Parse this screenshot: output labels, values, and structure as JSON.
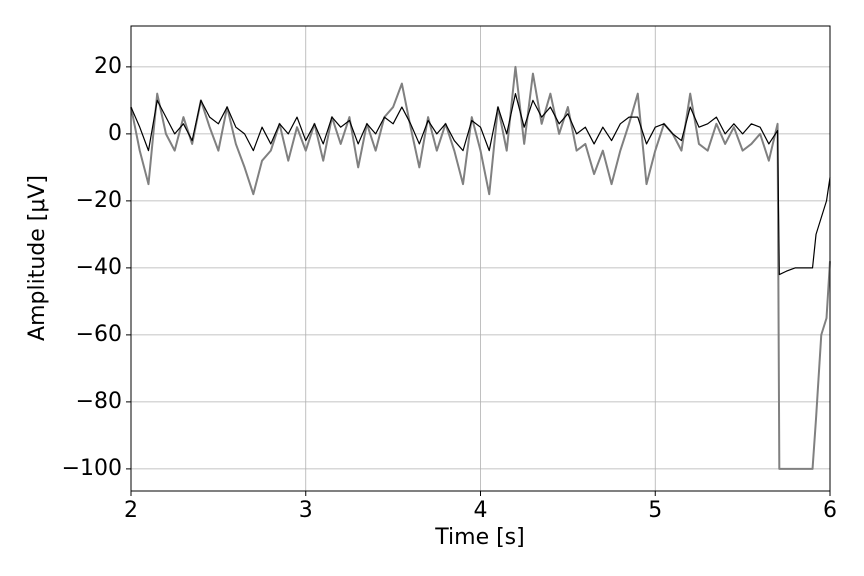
{
  "chart_data": {
    "type": "line",
    "xlabel": "Time [s]",
    "ylabel": "Amplitude [μV]",
    "x": [
      2.0,
      2.05,
      2.1,
      2.15,
      2.2,
      2.25,
      2.3,
      2.35,
      2.4,
      2.45,
      2.5,
      2.55,
      2.6,
      2.65,
      2.7,
      2.75,
      2.8,
      2.85,
      2.9,
      2.95,
      3.0,
      3.05,
      3.1,
      3.15,
      3.2,
      3.25,
      3.3,
      3.35,
      3.4,
      3.45,
      3.5,
      3.55,
      3.6,
      3.65,
      3.7,
      3.75,
      3.8,
      3.85,
      3.9,
      3.95,
      4.0,
      4.05,
      4.1,
      4.15,
      4.2,
      4.25,
      4.3,
      4.35,
      4.4,
      4.45,
      4.5,
      4.55,
      4.6,
      4.65,
      4.7,
      4.75,
      4.8,
      4.85,
      4.9,
      4.95,
      5.0,
      5.05,
      5.1,
      5.15,
      5.2,
      5.25,
      5.3,
      5.35,
      5.4,
      5.45,
      5.5,
      5.55,
      5.6,
      5.65,
      5.7,
      5.71,
      5.75,
      5.8,
      5.85,
      5.9,
      5.92,
      5.95,
      5.98,
      6.0
    ],
    "series": [
      {
        "color": "#808080",
        "values": [
          8,
          -5,
          -15,
          12,
          0,
          -5,
          5,
          -3,
          10,
          2,
          -5,
          8,
          -3,
          -10,
          -18,
          -8,
          -5,
          3,
          -8,
          2,
          -5,
          3,
          -8,
          5,
          -3,
          5,
          -10,
          3,
          -5,
          5,
          8,
          15,
          2,
          -10,
          5,
          -5,
          3,
          -5,
          -15,
          5,
          -5,
          -18,
          8,
          -5,
          20,
          -3,
          18,
          3,
          12,
          0,
          8,
          -5,
          -3,
          -12,
          -5,
          -15,
          -5,
          3,
          12,
          -15,
          -5,
          3,
          0,
          -5,
          12,
          -3,
          -5,
          3,
          -3,
          2,
          -5,
          -3,
          0,
          -8,
          3,
          -100,
          -100,
          -100,
          -100,
          -100,
          -85,
          -60,
          -55,
          -38
        ]
      },
      {
        "color": "#000000",
        "values": [
          8,
          2,
          -5,
          10,
          5,
          0,
          3,
          -2,
          10,
          5,
          3,
          8,
          2,
          0,
          -5,
          2,
          -3,
          3,
          0,
          5,
          -2,
          3,
          -3,
          5,
          2,
          4,
          -3,
          3,
          0,
          5,
          3,
          8,
          3,
          -3,
          4,
          0,
          3,
          -2,
          -5,
          4,
          2,
          -5,
          8,
          0,
          12,
          2,
          10,
          5,
          8,
          3,
          6,
          0,
          2,
          -3,
          2,
          -2,
          3,
          5,
          5,
          -3,
          2,
          3,
          0,
          -2,
          8,
          2,
          3,
          5,
          0,
          3,
          0,
          3,
          2,
          -3,
          1,
          -42,
          -41,
          -40,
          -40,
          -40,
          -30,
          -25,
          -20,
          -13
        ]
      }
    ],
    "xlim": [
      2,
      6
    ],
    "xticks": [
      2,
      3,
      4,
      5,
      6
    ],
    "ylim": [
      -106.6,
      32.2
    ],
    "yticks": [
      {
        "value": -100,
        "label": "−100"
      },
      {
        "value": -80,
        "label": "−80"
      },
      {
        "value": -60,
        "label": "−60"
      },
      {
        "value": -40,
        "label": "−40"
      },
      {
        "value": -20,
        "label": "−20"
      },
      0,
      20
    ],
    "grid": true
  }
}
